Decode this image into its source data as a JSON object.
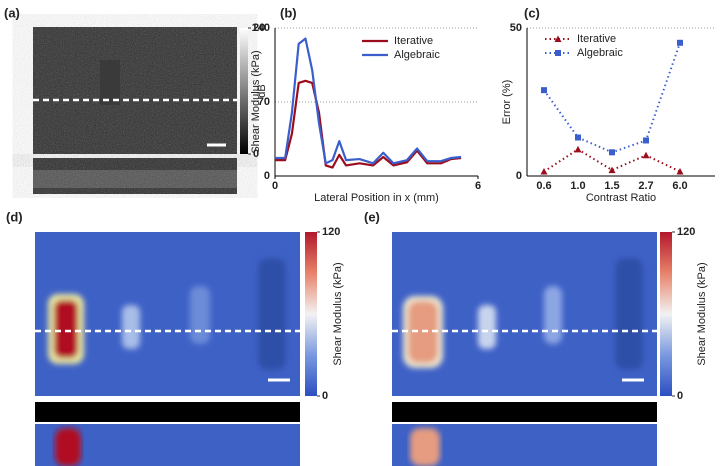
{
  "chart_data": [
    {
      "type": "image",
      "title": "(a)",
      "colorbar_label": "dB",
      "clim": [
        0,
        20
      ],
      "cticks": [
        0,
        20
      ]
    },
    {
      "type": "line",
      "title": "(b)",
      "ylabel": "Shear Modulus (kPa)",
      "xlabel": "Lateral Position in x (mm)",
      "x": [
        0,
        0.3,
        0.5,
        0.7,
        0.9,
        1.1,
        1.3,
        1.5,
        1.7,
        1.9,
        2.1,
        2.5,
        2.9,
        3.2,
        3.5,
        3.9,
        4.2,
        4.5,
        4.9,
        5.2,
        5.5
      ],
      "series": [
        {
          "name": "Iterative",
          "color": "#9b0d1c",
          "values": [
            15,
            15,
            40,
            88,
            90,
            88,
            60,
            10,
            8,
            20,
            10,
            12,
            10,
            18,
            10,
            13,
            24,
            12,
            12,
            16,
            17
          ]
        },
        {
          "name": "Algebraic",
          "color": "#3a5fcd",
          "values": [
            17,
            17,
            60,
            125,
            130,
            100,
            50,
            12,
            15,
            33,
            15,
            16,
            12,
            22,
            12,
            15,
            26,
            14,
            14,
            17,
            18
          ]
        }
      ],
      "xlim": [
        0,
        6
      ],
      "xticks": [
        0,
        6
      ],
      "ylim": [
        0,
        140
      ],
      "yticks": [
        0,
        70,
        140
      ],
      "grid": true,
      "linestyle": "solid"
    },
    {
      "type": "line",
      "title": "(c)",
      "ylabel": "Error (%)",
      "xlabel": "Contrast Ratio",
      "categories": [
        "0.6",
        "1.0",
        "1.5",
        "2.7",
        "6.0"
      ],
      "series": [
        {
          "name": "Iterative",
          "color": "#9b0d1c",
          "marker": "triangle",
          "values": [
            1.5,
            9,
            2,
            7,
            1.5
          ]
        },
        {
          "name": "Algebraic",
          "color": "#3a5fcd",
          "marker": "square",
          "values": [
            29,
            13,
            8,
            12,
            45
          ]
        }
      ],
      "ylim": [
        0,
        50
      ],
      "yticks": [
        0,
        50
      ],
      "grid": true,
      "linestyle": "dotted"
    },
    {
      "type": "image",
      "title": "(d)",
      "colorbar_label": "Shear Modulus (kPa)",
      "clim": [
        0,
        120
      ],
      "cticks": [
        0,
        120
      ]
    },
    {
      "type": "image",
      "title": "(e)",
      "colorbar_label": "Shear Modulus (kPa)",
      "clim": [
        0,
        120
      ],
      "cticks": [
        0,
        120
      ]
    }
  ]
}
